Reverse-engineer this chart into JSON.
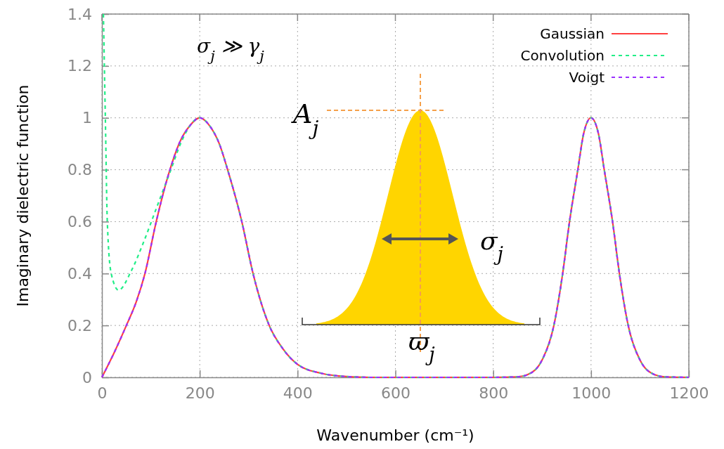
{
  "chart_data": {
    "type": "line",
    "xlabel": "Wavenumber (cm⁻¹)",
    "ylabel": "Imaginary dielectric function",
    "xlim": [
      0,
      1200
    ],
    "xticks": [
      0,
      200,
      400,
      600,
      800,
      1000,
      1200
    ],
    "ylim": [
      0,
      1.4
    ],
    "yticks": [
      0,
      {
        "value": 0.2,
        "label": "0.2"
      },
      {
        "value": 0.4,
        "label": "0.4"
      },
      {
        "value": 0.6,
        "label": "0.6"
      },
      {
        "value": 0.8,
        "label": "0.8"
      },
      1,
      {
        "value": 1.2,
        "label": "1.2"
      },
      {
        "value": 1.4,
        "label": "1.4"
      }
    ],
    "grid": true,
    "legend": "top right",
    "marker": "none",
    "annotations": [
      "σ$_{j}$ ≫ γ$_{j}$",
      "A$_{j}$",
      "σ$_{j}$",
      "ϖ$_{j}$"
    ],
    "series": [
      {
        "name": "Gaussian",
        "color": "#ff4040",
        "line_style": "solid",
        "x": [
          0,
          25,
          50,
          70,
          88,
          111,
          139,
          160,
          180,
          200,
          220,
          240,
          257,
          286,
          309,
          342,
          370,
          400,
          450,
          500,
          550,
          600,
          700,
          800,
          850,
          870,
          900,
          924,
          942,
          956,
          973,
          985,
          1000,
          1015,
          1027,
          1044,
          1058,
          1076,
          1100,
          1130,
          1150,
          1200
        ],
        "values": [
          0,
          0.095,
          0.2,
          0.29,
          0.4,
          0.6,
          0.8,
          0.91,
          0.97,
          1,
          0.97,
          0.9,
          0.8,
          0.6,
          0.4,
          0.2,
          0.11,
          0.05,
          0.015,
          0.003,
          0,
          0,
          0,
          0,
          0.002,
          0.01,
          0.067,
          0.2,
          0.4,
          0.6,
          0.8,
          0.94,
          1,
          0.94,
          0.8,
          0.6,
          0.4,
          0.2,
          0.067,
          0.01,
          0.002,
          0
        ]
      },
      {
        "name": "Convolution",
        "color": "#22ee88",
        "line_style": "dashed",
        "x": [
          3,
          7,
          11,
          19,
          34,
          60,
          86,
          111,
          139,
          163,
          180,
          200,
          220,
          240,
          257,
          286,
          309,
          342,
          370,
          400,
          450,
          500,
          550,
          600,
          700,
          800,
          850,
          870,
          900,
          924,
          942,
          956,
          973,
          985,
          1000,
          1015,
          1027,
          1044,
          1058,
          1076,
          1100,
          1130,
          1150,
          1200
        ],
        "values": [
          1.4,
          1,
          0.6,
          0.4,
          0.336,
          0.41,
          0.525,
          0.65,
          0.79,
          0.91,
          0.97,
          1,
          0.97,
          0.9,
          0.8,
          0.6,
          0.4,
          0.2,
          0.11,
          0.05,
          0.015,
          0.003,
          0,
          0,
          0,
          0,
          0.002,
          0.01,
          0.067,
          0.2,
          0.4,
          0.6,
          0.8,
          0.94,
          1,
          0.94,
          0.8,
          0.6,
          0.4,
          0.2,
          0.067,
          0.01,
          0.002,
          0
        ]
      },
      {
        "name": "Voigt",
        "color": "#9b30ff",
        "line_style": "dashed",
        "x": [
          0,
          25,
          50,
          70,
          88,
          111,
          139,
          160,
          180,
          200,
          220,
          240,
          257,
          286,
          309,
          342,
          370,
          400,
          450,
          500,
          550,
          600,
          700,
          800,
          850,
          870,
          900,
          924,
          942,
          956,
          973,
          985,
          1000,
          1015,
          1027,
          1044,
          1058,
          1076,
          1100,
          1130,
          1150,
          1200
        ],
        "values": [
          0,
          0.095,
          0.2,
          0.29,
          0.4,
          0.6,
          0.8,
          0.91,
          0.97,
          1,
          0.97,
          0.9,
          0.8,
          0.6,
          0.4,
          0.2,
          0.11,
          0.05,
          0.015,
          0.003,
          0,
          0,
          0,
          0,
          0.002,
          0.01,
          0.067,
          0.2,
          0.4,
          0.6,
          0.8,
          0.94,
          1,
          0.94,
          0.8,
          0.6,
          0.4,
          0.2,
          0.067,
          0.01,
          0.002,
          0
        ]
      }
    ]
  }
}
